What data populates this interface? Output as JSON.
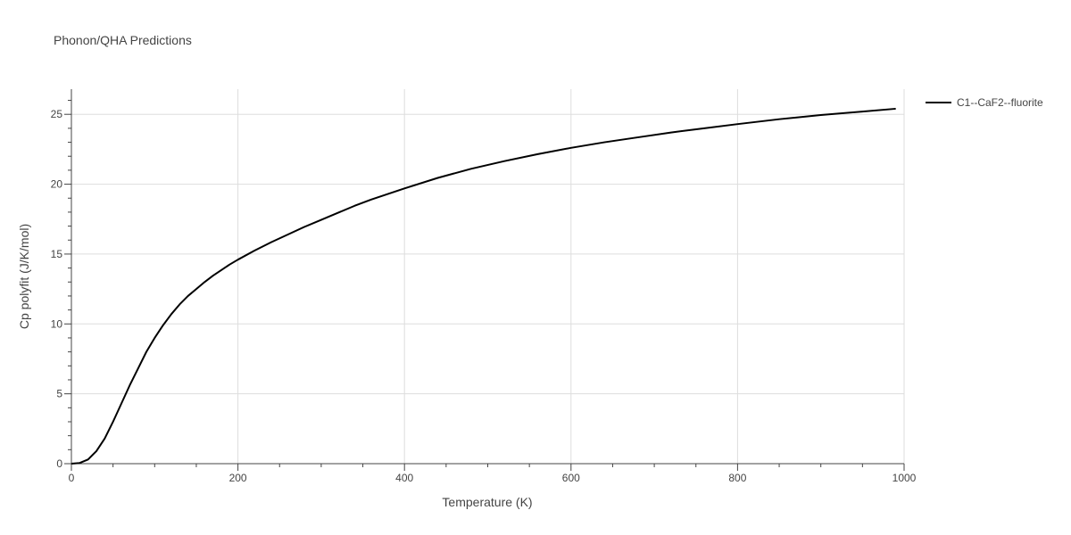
{
  "chart_data": {
    "type": "line",
    "title": "Phonon/QHA Predictions",
    "xlabel": "Temperature (K)",
    "ylabel": "Cp polyfit (J/K/mol)",
    "xlim": [
      0,
      1000
    ],
    "ylim": [
      0,
      26.8
    ],
    "x_ticks": [
      0,
      200,
      400,
      600,
      800,
      1000
    ],
    "y_ticks": [
      0,
      5,
      10,
      15,
      20,
      25
    ],
    "grid": true,
    "legend_position": "top-right",
    "series": [
      {
        "name": "C1--CaF2--fluorite",
        "color": "#000000",
        "x": [
          0,
          10,
          20,
          30,
          40,
          50,
          60,
          70,
          80,
          90,
          100,
          110,
          120,
          130,
          140,
          150,
          160,
          170,
          180,
          190,
          200,
          220,
          240,
          260,
          280,
          300,
          320,
          340,
          360,
          380,
          400,
          440,
          480,
          520,
          560,
          600,
          640,
          680,
          720,
          760,
          800,
          850,
          900,
          950,
          990
        ],
        "y": [
          0.0,
          0.05,
          0.3,
          0.9,
          1.8,
          3.0,
          4.3,
          5.6,
          6.8,
          8.0,
          9.0,
          9.9,
          10.7,
          11.4,
          12.0,
          12.5,
          13.0,
          13.45,
          13.85,
          14.25,
          14.6,
          15.25,
          15.85,
          16.4,
          16.95,
          17.45,
          17.95,
          18.45,
          18.9,
          19.3,
          19.7,
          20.45,
          21.1,
          21.65,
          22.15,
          22.6,
          23.0,
          23.35,
          23.7,
          24.0,
          24.3,
          24.65,
          24.95,
          25.2,
          25.4
        ]
      }
    ]
  }
}
